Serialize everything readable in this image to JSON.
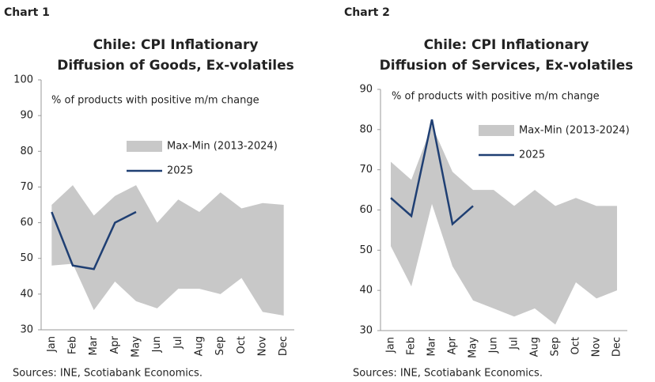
{
  "chart_data": [
    {
      "type": "line",
      "label": "Chart 1",
      "title": [
        "Chile: CPI Inflationary",
        "Diffusion of Goods, Ex-volatiles"
      ],
      "subtitle": "% of products with positive m/m change",
      "source": "Sources: INE, Scotiabank Economics.",
      "categories": [
        "Jan",
        "Feb",
        "Mar",
        "Apr",
        "May",
        "Jun",
        "Jul",
        "Aug",
        "Sep",
        "Oct",
        "Nov",
        "Dec"
      ],
      "ylim": [
        30,
        100
      ],
      "yticks": [
        30,
        40,
        50,
        60,
        70,
        80,
        90,
        100
      ],
      "series": [
        {
          "name": "Max-Min (2013-2024)",
          "type": "range",
          "color": "#c8c8c8",
          "high": [
            65,
            70.5,
            62,
            67.5,
            70.5,
            60,
            66.5,
            63,
            68.5,
            64,
            65.5,
            65
          ],
          "low": [
            48,
            48.5,
            35.5,
            43.5,
            38,
            36,
            41.5,
            41.5,
            40,
            44.5,
            35,
            34
          ]
        },
        {
          "name": "2025",
          "type": "line",
          "color": "#1f3f73",
          "values": [
            63,
            48,
            47,
            60,
            63,
            null,
            null,
            null,
            null,
            null,
            null,
            null
          ]
        }
      ]
    },
    {
      "type": "line",
      "label": "Chart 2",
      "title": [
        "Chile: CPI Inflationary",
        "Diffusion of Services, Ex-volatiles"
      ],
      "subtitle": "% of products with positive m/m change",
      "source": "Sources: INE, Scotiabank Economics.",
      "categories": [
        "Jan",
        "Feb",
        "Mar",
        "Apr",
        "May",
        "Jun",
        "Jul",
        "Aug",
        "Sep",
        "Oct",
        "Nov",
        "Dec"
      ],
      "ylim": [
        30,
        90
      ],
      "yticks": [
        30,
        40,
        50,
        60,
        70,
        80,
        90
      ],
      "series": [
        {
          "name": "Max-Min (2013-2024)",
          "type": "range",
          "color": "#c8c8c8",
          "high": [
            72,
            67.5,
            81,
            69.5,
            65,
            65,
            61,
            65,
            61,
            63,
            61,
            61
          ],
          "low": [
            51,
            41,
            61.5,
            46,
            37.5,
            35.5,
            33.5,
            35.5,
            31.5,
            42,
            38,
            40
          ]
        },
        {
          "name": "2025",
          "type": "line",
          "color": "#1f3f73",
          "values": [
            63,
            58.5,
            82.5,
            56.5,
            61,
            null,
            null,
            null,
            null,
            null,
            null,
            null
          ]
        }
      ]
    }
  ]
}
